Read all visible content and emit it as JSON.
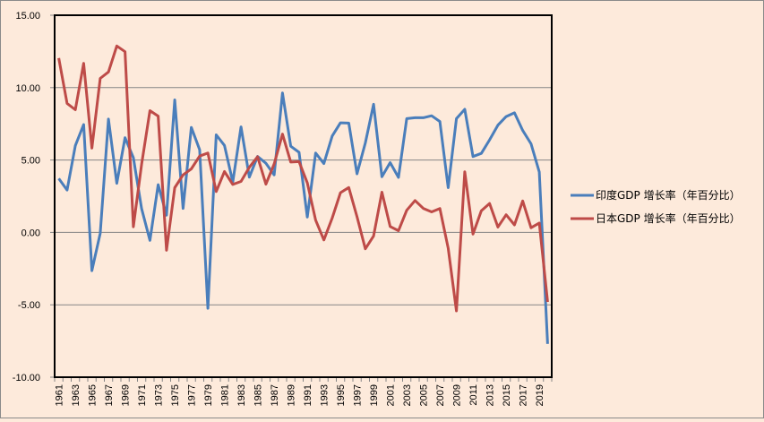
{
  "chart_data": {
    "type": "line",
    "title": "",
    "xlabel": "",
    "ylabel": "",
    "ylim": [
      -10,
      15
    ],
    "yticks": [
      "15.00",
      "10.00",
      "5.00",
      "0.00",
      "-5.00",
      "-10.00"
    ],
    "ytick_values": [
      15,
      10,
      5,
      0,
      -5,
      -10
    ],
    "grid": "horizontal",
    "legend_position": "right",
    "x": [
      1961,
      1962,
      1963,
      1964,
      1965,
      1966,
      1967,
      1968,
      1969,
      1970,
      1971,
      1972,
      1973,
      1974,
      1975,
      1976,
      1977,
      1978,
      1979,
      1980,
      1981,
      1982,
      1983,
      1984,
      1985,
      1986,
      1987,
      1988,
      1989,
      1990,
      1991,
      1992,
      1993,
      1994,
      1995,
      1996,
      1997,
      1998,
      1999,
      2000,
      2001,
      2002,
      2003,
      2004,
      2005,
      2006,
      2007,
      2008,
      2009,
      2010,
      2011,
      2012,
      2013,
      2014,
      2015,
      2016,
      2017,
      2018,
      2019,
      2020
    ],
    "series": [
      {
        "name": "印度GDP 增长率（年百分比）",
        "color": "#4a7ebb",
        "values": [
          3.72,
          2.93,
          5.99,
          7.45,
          -2.64,
          -0.06,
          7.83,
          3.39,
          6.54,
          5.16,
          1.64,
          -0.55,
          3.3,
          1.19,
          9.15,
          1.66,
          7.25,
          5.71,
          -5.24,
          6.74,
          6.01,
          3.48,
          7.29,
          3.82,
          5.25,
          4.78,
          3.97,
          9.63,
          5.95,
          5.53,
          1.06,
          5.48,
          4.75,
          6.66,
          7.57,
          7.55,
          4.05,
          6.18,
          8.85,
          3.84,
          4.82,
          3.8,
          7.86,
          7.92,
          7.92,
          8.06,
          7.66,
          3.09,
          7.86,
          8.5,
          5.24,
          5.46,
          6.39,
          7.41,
          8.0,
          8.26,
          7.04,
          6.12,
          4.18,
          -7.7
        ]
      },
      {
        "name": "日本GDP 增长率（年百分比）",
        "color": "#be4b48",
        "values": [
          12.04,
          8.91,
          8.47,
          11.68,
          5.82,
          10.64,
          11.08,
          12.88,
          12.48,
          0.39,
          4.7,
          8.41,
          8.03,
          -1.23,
          3.09,
          3.97,
          4.39,
          5.27,
          5.48,
          2.82,
          4.21,
          3.31,
          3.52,
          4.5,
          5.23,
          3.33,
          4.73,
          6.79,
          4.86,
          4.89,
          3.42,
          0.85,
          -0.52,
          0.99,
          2.74,
          3.1,
          1.08,
          -1.13,
          -0.25,
          2.78,
          0.41,
          0.12,
          1.53,
          2.2,
          1.66,
          1.42,
          1.65,
          -1.09,
          -5.42,
          4.19,
          -0.12,
          1.5,
          2.0,
          0.37,
          1.22,
          0.52,
          2.17,
          0.32,
          0.65,
          -4.8
        ]
      }
    ]
  }
}
